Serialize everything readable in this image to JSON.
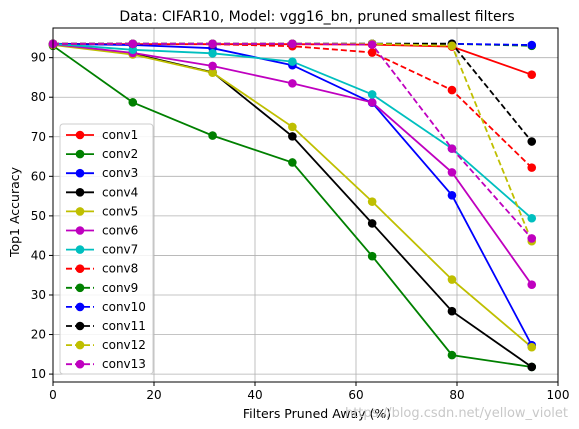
{
  "chart_data": {
    "type": "line",
    "title": "Data: CIFAR10, Model: vgg16_bn, pruned smallest filters",
    "xlabel": "Filters Pruned Away (%)",
    "ylabel": "Top1 Accuracy",
    "xlim": [
      0,
      100
    ],
    "ylim": [
      8,
      97.5
    ],
    "xticks": [
      0,
      20,
      40,
      60,
      80,
      100
    ],
    "yticks": [
      10,
      20,
      30,
      40,
      50,
      60,
      70,
      80,
      90
    ],
    "grid": true,
    "legend_position": "center-left",
    "x": [
      0,
      15.8,
      31.6,
      47.4,
      63.2,
      79.0,
      94.8
    ],
    "series": [
      {
        "name": "conv1",
        "color": "#ff0000",
        "dash": false,
        "values": [
          93.5,
          93.4,
          93.4,
          93.4,
          93.3,
          92.8,
          85.7
        ]
      },
      {
        "name": "conv2",
        "color": "#008000",
        "dash": false,
        "values": [
          93.0,
          78.7,
          70.3,
          63.5,
          39.8,
          14.8,
          11.8
        ]
      },
      {
        "name": "conv3",
        "color": "#0000ff",
        "dash": false,
        "values": [
          93.5,
          93.2,
          92.4,
          88.1,
          78.6,
          55.2,
          17.3
        ]
      },
      {
        "name": "conv4",
        "color": "#000000",
        "dash": false,
        "values": [
          93.4,
          91.0,
          86.3,
          70.1,
          48.1,
          25.9,
          11.8
        ]
      },
      {
        "name": "conv5",
        "color": "#bfbf00",
        "dash": false,
        "values": [
          93.2,
          90.8,
          86.2,
          72.5,
          53.6,
          33.9,
          16.8
        ]
      },
      {
        "name": "conv6",
        "color": "#bf00bf",
        "dash": false,
        "values": [
          93.4,
          91.2,
          87.9,
          83.5,
          78.7,
          61.0,
          32.6
        ]
      },
      {
        "name": "conv7",
        "color": "#00bfbf",
        "dash": false,
        "values": [
          93.5,
          92.0,
          91.1,
          89.0,
          80.7,
          67.0,
          49.4
        ]
      },
      {
        "name": "conv8",
        "color": "#ff0000",
        "dash": true,
        "values": [
          93.5,
          93.5,
          93.4,
          92.9,
          91.3,
          81.8,
          62.2
        ]
      },
      {
        "name": "conv9",
        "color": "#008000",
        "dash": true,
        "values": [
          93.5,
          93.5,
          93.5,
          93.5,
          93.5,
          93.5,
          93.0
        ]
      },
      {
        "name": "conv10",
        "color": "#0000ff",
        "dash": true,
        "values": [
          93.5,
          93.5,
          93.5,
          93.5,
          93.5,
          93.5,
          93.2
        ]
      },
      {
        "name": "conv11",
        "color": "#000000",
        "dash": true,
        "values": [
          93.5,
          93.5,
          93.5,
          93.5,
          93.5,
          93.5,
          68.8
        ]
      },
      {
        "name": "conv12",
        "color": "#bfbf00",
        "dash": true,
        "values": [
          93.5,
          93.5,
          93.5,
          93.5,
          93.5,
          93.0,
          43.6
        ]
      },
      {
        "name": "conv13",
        "color": "#bf00bf",
        "dash": true,
        "values": [
          93.5,
          93.5,
          93.5,
          93.5,
          93.3,
          67.0,
          44.3
        ]
      }
    ]
  },
  "watermark": "https://blog.csdn.net/yellow_violet"
}
